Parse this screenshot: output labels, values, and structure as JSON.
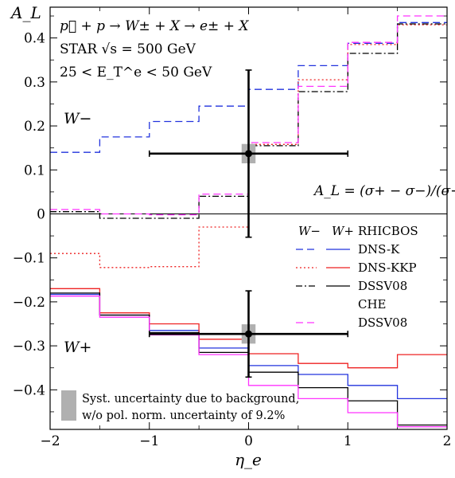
{
  "chart_data": {
    "type": "line",
    "ylabel": "A_L",
    "xlabel": "η_e",
    "xlim": [
      -2,
      2
    ],
    "ylim": [
      -0.49,
      0.47
    ],
    "x_ticks": [
      -2,
      -1,
      0,
      1,
      2
    ],
    "y_ticks": [
      0.4,
      0.3,
      0.2,
      0.1,
      0,
      -0.1,
      -0.2,
      -0.3,
      -0.4
    ],
    "x_tick_labels": [
      "−2",
      "−1",
      "0",
      "1",
      "2"
    ],
    "y_tick_labels": [
      "0.4",
      "0.3",
      "0.2",
      "0.1",
      "0",
      "−0.1",
      "−0.2",
      "−0.3",
      "−0.4"
    ],
    "grid": false,
    "zero_line": true,
    "bin_edges": [
      -2,
      -1.5,
      -1,
      -0.5,
      0,
      0.5,
      1,
      1.5,
      2
    ],
    "annotations": {
      "process": "p⃗ + p → W± + X → e± + X",
      "experiment": "STAR √s = 500 GeV",
      "cut": "25 < E_T^e < 50 GeV",
      "w_minus": "W−",
      "w_plus": "W+",
      "formula": "A_L = (σ+ − σ−)/(σ+ + σ−)"
    },
    "legend": {
      "position": "right",
      "header_w_minus": "W−",
      "header_w_plus": "W+",
      "entries": [
        "RHICBOS",
        "DNS-K",
        "DNS-KKP",
        "DSSV08",
        "CHE",
        "DSSV08"
      ],
      "syst_note_line1": "Syst. uncertainty due to background,",
      "syst_note_line2": "w/o pol. norm. uncertainty of 9.2%"
    },
    "data_points": [
      {
        "name": "W−",
        "x": 0.0,
        "y": 0.137,
        "x_err": 1.0,
        "y_err": 0.19,
        "syst_x": 0.07,
        "syst_y": 0.022
      },
      {
        "name": "W+",
        "x": 0.0,
        "y": -0.273,
        "x_err": 1.0,
        "y_err": 0.098,
        "syst_x": 0.07,
        "syst_y": 0.022
      }
    ],
    "series": [
      {
        "group": "W−",
        "model": "RHICBOS",
        "color": "#2233dd",
        "dash": "dashed",
        "values": [
          0.14,
          0.175,
          0.21,
          0.245,
          0.283,
          0.337,
          0.388,
          0.435
        ]
      },
      {
        "group": "W−",
        "model": "DNS-K",
        "color": "#ee2222",
        "dash": "dotted",
        "values": [
          -0.09,
          -0.122,
          -0.12,
          -0.03,
          0.158,
          0.305,
          0.385,
          0.43
        ]
      },
      {
        "group": "W−",
        "model": "DNS-KKP",
        "color": "#000000",
        "dash": "dashdot",
        "values": [
          0.005,
          -0.01,
          -0.01,
          0.04,
          0.155,
          0.278,
          0.365,
          0.432
        ]
      },
      {
        "group": "W−",
        "model": "DSSV08",
        "color": "#ff33ff",
        "dash": "dashed",
        "values": [
          0.01,
          0.0,
          -0.002,
          0.045,
          0.162,
          0.29,
          0.39,
          0.45
        ]
      },
      {
        "group": "W+",
        "model": "RHICBOS",
        "color": "#2233dd",
        "dash": "solid",
        "values": [
          -0.183,
          -0.23,
          -0.265,
          -0.305,
          -0.345,
          -0.365,
          -0.39,
          -0.42
        ]
      },
      {
        "group": "W+",
        "model": "DNS-K",
        "color": "#ee2222",
        "dash": "solid",
        "values": [
          -0.17,
          -0.225,
          -0.25,
          -0.285,
          -0.318,
          -0.34,
          -0.35,
          -0.32
        ]
      },
      {
        "group": "W+",
        "model": "DNS-KKP",
        "color": "#000000",
        "dash": "solid",
        "values": [
          -0.18,
          -0.23,
          -0.27,
          -0.315,
          -0.36,
          -0.395,
          -0.425,
          -0.48
        ]
      },
      {
        "group": "W+",
        "model": "DSSV08",
        "color": "#ff33ff",
        "dash": "solid",
        "values": [
          -0.187,
          -0.235,
          -0.275,
          -0.32,
          -0.39,
          -0.42,
          -0.452,
          -0.484
        ]
      }
    ]
  }
}
